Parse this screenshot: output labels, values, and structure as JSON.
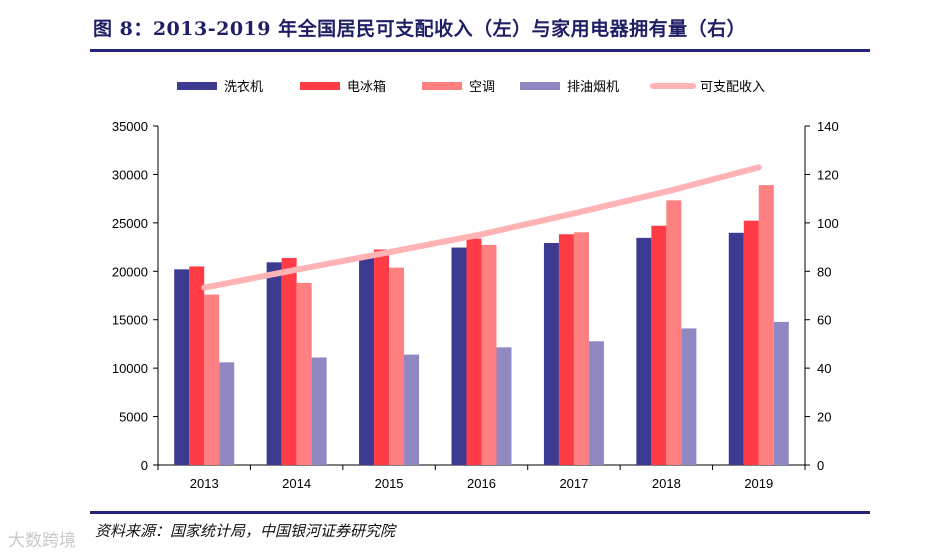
{
  "header": {
    "title": "图 8：2013-2019 年全国居民可支配收入（左）与家用电器拥有量（右）"
  },
  "footer": {
    "source": "资料来源：国家统计局，中国银河证券研究院",
    "watermark": "大数跨境"
  },
  "colors": {
    "rule": "#22227a",
    "washer": "#3d3a92",
    "fridge": "#ff3b45",
    "ac": "#ff8080",
    "hood": "#8f88c2",
    "income": "#ffb3b5"
  },
  "chart_data": {
    "type": "bar",
    "categories": [
      "2013",
      "2014",
      "2015",
      "2016",
      "2017",
      "2018",
      "2019"
    ],
    "series": [
      {
        "name": "洗衣机",
        "axis": "right",
        "color": "#3d3a92",
        "values": [
          80.8,
          83.7,
          86.4,
          89.8,
          91.7,
          93.8,
          95.9
        ]
      },
      {
        "name": "电冰箱",
        "axis": "right",
        "color": "#ff3b45",
        "values": [
          82.0,
          85.5,
          89.0,
          93.5,
          95.3,
          98.8,
          100.9
        ]
      },
      {
        "name": "空调",
        "axis": "right",
        "color": "#ff8080",
        "values": [
          70.4,
          75.2,
          81.5,
          90.9,
          96.1,
          109.3,
          115.6
        ]
      },
      {
        "name": "排油烟机",
        "axis": "right",
        "color": "#8f88c2",
        "values": [
          42.4,
          44.4,
          45.6,
          48.6,
          51.1,
          56.4,
          59.1
        ]
      }
    ],
    "line_series": [
      {
        "name": "可支配收入",
        "axis": "left",
        "color": "#ffb3b5",
        "values": [
          18311,
          20167,
          21966,
          23821,
          25974,
          28228,
          30733
        ]
      }
    ],
    "legend": [
      "洗衣机",
      "电冰箱",
      "空调",
      "排油烟机",
      "可支配收入"
    ],
    "legend_position": "top",
    "y_left": {
      "min": 0,
      "max": 35000,
      "ticks": [
        "0",
        "5000",
        "10000",
        "15000",
        "20000",
        "25000",
        "30000",
        "35000"
      ]
    },
    "y_right": {
      "min": 0,
      "max": 140,
      "ticks": [
        "0",
        "20",
        "40",
        "60",
        "80",
        "100",
        "120",
        "140"
      ]
    },
    "grid": false
  }
}
